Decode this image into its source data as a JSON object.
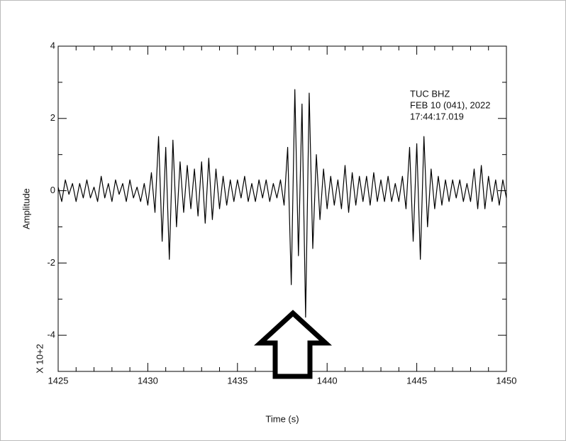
{
  "chart_data": {
    "type": "line",
    "y_label": "Amplitude",
    "x_label": "Time (s)",
    "y_multiplier": "X 10+2",
    "annotations": [
      "TUC  BHZ",
      "FEB 10 (041), 2022",
      "17:44:17.019"
    ],
    "color": "#000000",
    "xlim": [
      1425,
      1450
    ],
    "ylim": [
      -5,
      4
    ],
    "xticks": [
      1425,
      1430,
      1435,
      1440,
      1445,
      1450
    ],
    "xticks_minor": [
      1426,
      1427,
      1428,
      1429,
      1431,
      1432,
      1433,
      1434,
      1436,
      1437,
      1438,
      1439,
      1441,
      1442,
      1443,
      1444,
      1446,
      1447,
      1448,
      1449
    ],
    "yticks": [
      -4,
      -2,
      0,
      2,
      4
    ],
    "yticks_minor": [
      -3,
      -1,
      1,
      3
    ],
    "x": [
      1425.0,
      1425.2,
      1425.4,
      1425.6,
      1425.8,
      1426.0,
      1426.2,
      1426.4,
      1426.6,
      1426.8,
      1427.0,
      1427.2,
      1427.4,
      1427.6,
      1427.8,
      1428.0,
      1428.2,
      1428.4,
      1428.6,
      1428.8,
      1429.0,
      1429.2,
      1429.4,
      1429.6,
      1429.8,
      1430.0,
      1430.2,
      1430.4,
      1430.6,
      1430.8,
      1431.0,
      1431.2,
      1431.4,
      1431.6,
      1431.8,
      1432.0,
      1432.2,
      1432.4,
      1432.6,
      1432.8,
      1433.0,
      1433.2,
      1433.4,
      1433.6,
      1433.8,
      1434.0,
      1434.2,
      1434.4,
      1434.6,
      1434.8,
      1435.0,
      1435.2,
      1435.4,
      1435.6,
      1435.8,
      1436.0,
      1436.2,
      1436.4,
      1436.6,
      1436.8,
      1437.0,
      1437.2,
      1437.4,
      1437.6,
      1437.8,
      1438.0,
      1438.2,
      1438.4,
      1438.6,
      1438.8,
      1439.0,
      1439.2,
      1439.4,
      1439.6,
      1439.8,
      1440.0,
      1440.2,
      1440.4,
      1440.6,
      1440.8,
      1441.0,
      1441.2,
      1441.4,
      1441.6,
      1441.8,
      1442.0,
      1442.2,
      1442.4,
      1442.6,
      1442.8,
      1443.0,
      1443.2,
      1443.4,
      1443.6,
      1443.8,
      1444.0,
      1444.2,
      1444.4,
      1444.6,
      1444.8,
      1445.0,
      1445.2,
      1445.4,
      1445.6,
      1445.8,
      1446.0,
      1446.2,
      1446.4,
      1446.6,
      1446.8,
      1447.0,
      1447.2,
      1447.4,
      1447.6,
      1447.8,
      1448.0,
      1448.2,
      1448.4,
      1448.6,
      1448.8,
      1449.0,
      1449.2,
      1449.4,
      1449.6,
      1449.8,
      1450.0
    ],
    "values": [
      0.1,
      -0.3,
      0.3,
      -0.1,
      0.2,
      -0.3,
      0.2,
      -0.2,
      0.3,
      -0.2,
      0.1,
      -0.3,
      0.4,
      -0.2,
      0.2,
      -0.3,
      0.3,
      -0.1,
      0.2,
      -0.3,
      0.3,
      -0.2,
      0.1,
      -0.3,
      0.2,
      -0.4,
      0.5,
      -0.6,
      1.5,
      -1.4,
      1.2,
      -1.9,
      1.4,
      -1.0,
      0.8,
      -0.6,
      0.7,
      -0.5,
      0.6,
      -0.7,
      0.8,
      -0.9,
      0.9,
      -0.8,
      0.6,
      -0.5,
      0.4,
      -0.4,
      0.3,
      -0.3,
      0.3,
      -0.2,
      0.4,
      -0.3,
      0.2,
      -0.3,
      0.3,
      -0.2,
      0.3,
      -0.3,
      0.2,
      -0.2,
      0.3,
      -0.4,
      1.2,
      -2.6,
      2.8,
      -1.8,
      2.4,
      -3.5,
      2.7,
      -1.6,
      1.0,
      -0.8,
      0.6,
      -0.5,
      0.4,
      -0.4,
      0.3,
      -0.5,
      0.7,
      -0.6,
      0.5,
      -0.4,
      0.4,
      -0.3,
      0.4,
      -0.4,
      0.5,
      -0.3,
      0.3,
      -0.3,
      0.4,
      -0.3,
      0.2,
      -0.3,
      0.4,
      -0.5,
      1.2,
      -1.4,
      1.3,
      -1.9,
      1.5,
      -1.0,
      0.6,
      -0.5,
      0.4,
      -0.4,
      0.3,
      -0.3,
      0.3,
      -0.2,
      0.3,
      -0.3,
      0.2,
      -0.3,
      0.6,
      -0.5,
      0.7,
      -0.5,
      0.4,
      -0.3,
      0.3,
      -0.4,
      0.3,
      -0.2
    ]
  }
}
